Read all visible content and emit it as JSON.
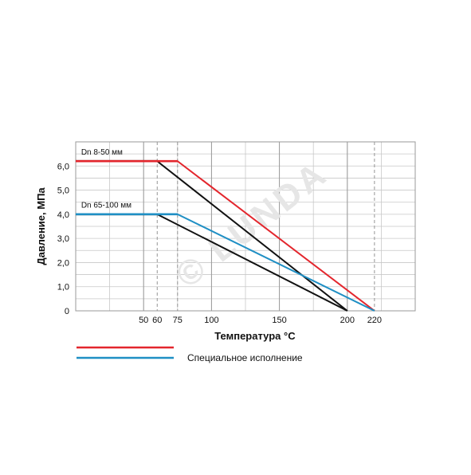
{
  "chart_data": {
    "type": "line",
    "title": "",
    "xlabel": "Температура °C",
    "ylabel": "Давление, МПа",
    "xlim": [
      0,
      250
    ],
    "ylim": [
      0,
      7
    ],
    "x_ticks": [
      {
        "value": 50,
        "label": "50"
      },
      {
        "value": 60,
        "label": "60"
      },
      {
        "value": 75,
        "label": "75"
      },
      {
        "value": 100,
        "label": "100"
      },
      {
        "value": 150,
        "label": "150"
      },
      {
        "value": 200,
        "label": "200"
      },
      {
        "value": 220,
        "label": "220"
      }
    ],
    "y_ticks": [
      {
        "value": 0,
        "label": "0"
      },
      {
        "value": 1,
        "label": "1,0"
      },
      {
        "value": 2,
        "label": "2,0"
      },
      {
        "value": 3,
        "label": "3,0"
      },
      {
        "value": 4,
        "label": "4,0"
      },
      {
        "value": 5,
        "label": "5,0"
      },
      {
        "value": 6,
        "label": "6,0"
      }
    ],
    "grid": true,
    "dashed_x_gridlines": [
      60,
      75,
      220
    ],
    "series": [
      {
        "color": "#111111",
        "points": [
          [
            0,
            6.2
          ],
          [
            60,
            6.2
          ],
          [
            200,
            0
          ]
        ]
      },
      {
        "color": "#111111",
        "points": [
          [
            0,
            4.0
          ],
          [
            60,
            4.0
          ],
          [
            200,
            0
          ]
        ]
      },
      {
        "color": "#e3262d",
        "points": [
          [
            0,
            6.2
          ],
          [
            75,
            6.2
          ],
          [
            220,
            0
          ]
        ]
      },
      {
        "color": "#1f8fc4",
        "points": [
          [
            0,
            4.0
          ],
          [
            75,
            4.0
          ],
          [
            220,
            0
          ]
        ]
      }
    ],
    "annotations": [
      {
        "text": "Dn 8-50 мм",
        "x": 4,
        "y": 6.6
      },
      {
        "text": "Dn 65-100 мм",
        "x": 4,
        "y": 4.4
      }
    ],
    "legend": {
      "placement": "bottom-left",
      "entries": [
        {
          "color": "#e3262d",
          "label": ""
        },
        {
          "color": "#1f8fc4",
          "label": "Специальное исполнение"
        }
      ]
    },
    "watermark": "© LUNDA"
  }
}
